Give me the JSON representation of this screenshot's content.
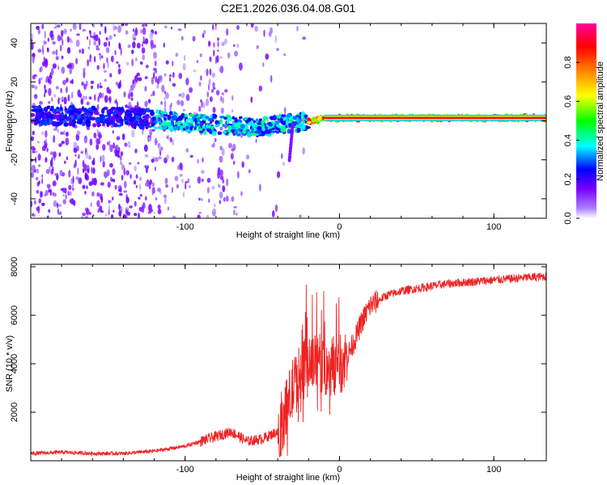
{
  "chart_data": [
    {
      "type": "heatmap",
      "title": "C2E1.2026.036.04.08.G01",
      "xlabel": "Height of straight line (km)",
      "ylabel": "Frequency (Hz)",
      "xlim": [
        -200,
        134
      ],
      "ylim": [
        -50,
        50
      ],
      "xticks": [
        -100,
        0,
        100
      ],
      "yticks": [
        -40,
        -20,
        0,
        20,
        40
      ],
      "colorbar": {
        "label": "Normalized spectral amplitude",
        "range": [
          0,
          1
        ],
        "ticks": [
          0.0,
          0.2,
          0.4,
          0.6,
          0.8
        ],
        "tick_labels": [
          "0.0",
          "0.2",
          "0.4",
          "0.6",
          "0.8"
        ],
        "colormap": [
          "#ffffff",
          "#ab82ff",
          "#7b00ff",
          "#0000ff",
          "#00ffff",
          "#00ff00",
          "#ffff00",
          "#ff8000",
          "#ff0000",
          "#ff00a0"
        ]
      },
      "ridge": {
        "description": "Doppler ridge near 0 Hz; noisy below about -30 km, a steady line near +1 Hz above -10 km",
        "x": [
          -200,
          -150,
          -120,
          -100,
          -80,
          -60,
          -50,
          -40,
          -30,
          -20,
          -10,
          0,
          50,
          100,
          134
        ],
        "frequency_hz": [
          3,
          2,
          1,
          -1,
          -2,
          -3,
          -3,
          -2,
          -1,
          0,
          1,
          1.5,
          1.5,
          1.5,
          1.5
        ]
      }
    },
    {
      "type": "line",
      "title": "",
      "xlabel": "Height of straight line (km)",
      "ylabel": "SNR (10 * v/v)",
      "xlim": [
        -200,
        134
      ],
      "ylim": [
        0,
        8100
      ],
      "xticks": [
        -100,
        0,
        100
      ],
      "yticks": [
        2000,
        4000,
        6000,
        8000
      ],
      "color": "#ee2222",
      "series": [
        {
          "name": "SNR",
          "x": [
            -200,
            -180,
            -160,
            -140,
            -120,
            -100,
            -80,
            -70,
            -60,
            -50,
            -40,
            -35,
            -30,
            -25,
            -20,
            -15,
            -10,
            -5,
            0,
            5,
            10,
            15,
            20,
            30,
            40,
            50,
            60,
            70,
            80,
            90,
            100,
            110,
            120,
            134
          ],
          "values": [
            300,
            350,
            300,
            300,
            400,
            600,
            1000,
            1200,
            800,
            900,
            1200,
            2000,
            3000,
            3600,
            3900,
            4000,
            3900,
            3900,
            4000,
            4300,
            5000,
            5800,
            6400,
            6800,
            7000,
            7100,
            7200,
            7300,
            7350,
            7400,
            7450,
            7500,
            7550,
            7600
          ]
        }
      ]
    }
  ]
}
